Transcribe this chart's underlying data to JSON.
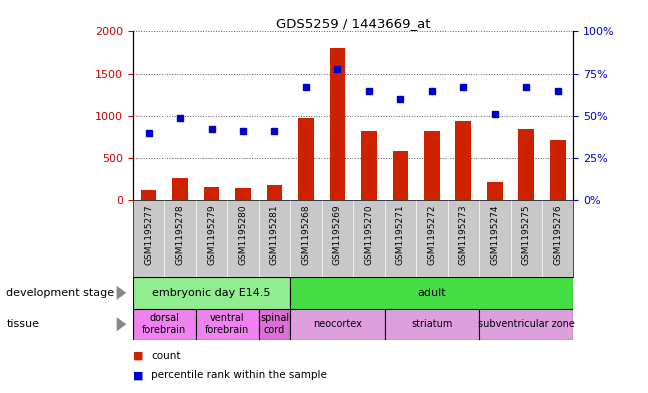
{
  "title": "GDS5259 / 1443669_at",
  "samples": [
    "GSM1195277",
    "GSM1195278",
    "GSM1195279",
    "GSM1195280",
    "GSM1195281",
    "GSM1195268",
    "GSM1195269",
    "GSM1195270",
    "GSM1195271",
    "GSM1195272",
    "GSM1195273",
    "GSM1195274",
    "GSM1195275",
    "GSM1195276"
  ],
  "counts": [
    120,
    260,
    160,
    150,
    180,
    980,
    1800,
    820,
    580,
    820,
    940,
    220,
    840,
    710
  ],
  "percentiles": [
    40,
    49,
    42,
    41,
    41,
    67,
    78,
    65,
    60,
    65,
    67,
    51,
    67,
    65
  ],
  "ylim_left": [
    0,
    2000
  ],
  "ylim_right": [
    0,
    100
  ],
  "yticks_left": [
    0,
    500,
    1000,
    1500,
    2000
  ],
  "yticks_right": [
    0,
    25,
    50,
    75,
    100
  ],
  "dev_stage_groups": [
    {
      "label": "embryonic day E14.5",
      "start": 0,
      "end": 5,
      "color": "#90EE90"
    },
    {
      "label": "adult",
      "start": 5,
      "end": 14,
      "color": "#44DD44"
    }
  ],
  "tissue_groups": [
    {
      "label": "dorsal\nforebrain",
      "start": 0,
      "end": 2,
      "color": "#EE82EE"
    },
    {
      "label": "ventral\nforebrain",
      "start": 2,
      "end": 4,
      "color": "#EE82EE"
    },
    {
      "label": "spinal\ncord",
      "start": 4,
      "end": 5,
      "color": "#DA70D6"
    },
    {
      "label": "neocortex",
      "start": 5,
      "end": 8,
      "color": "#DDA0DD"
    },
    {
      "label": "striatum",
      "start": 8,
      "end": 11,
      "color": "#DDA0DD"
    },
    {
      "label": "subventricular zone",
      "start": 11,
      "end": 14,
      "color": "#DDA0DD"
    }
  ],
  "bar_color": "#CC2200",
  "dot_color": "#0000CC",
  "grid_color": "#555555",
  "tick_color_left": "#CC0000",
  "tick_color_right": "#0000CC",
  "bar_width": 0.5,
  "bg_gray": "#C8C8C8",
  "label_left_dev": "development stage",
  "label_left_tissue": "tissue"
}
